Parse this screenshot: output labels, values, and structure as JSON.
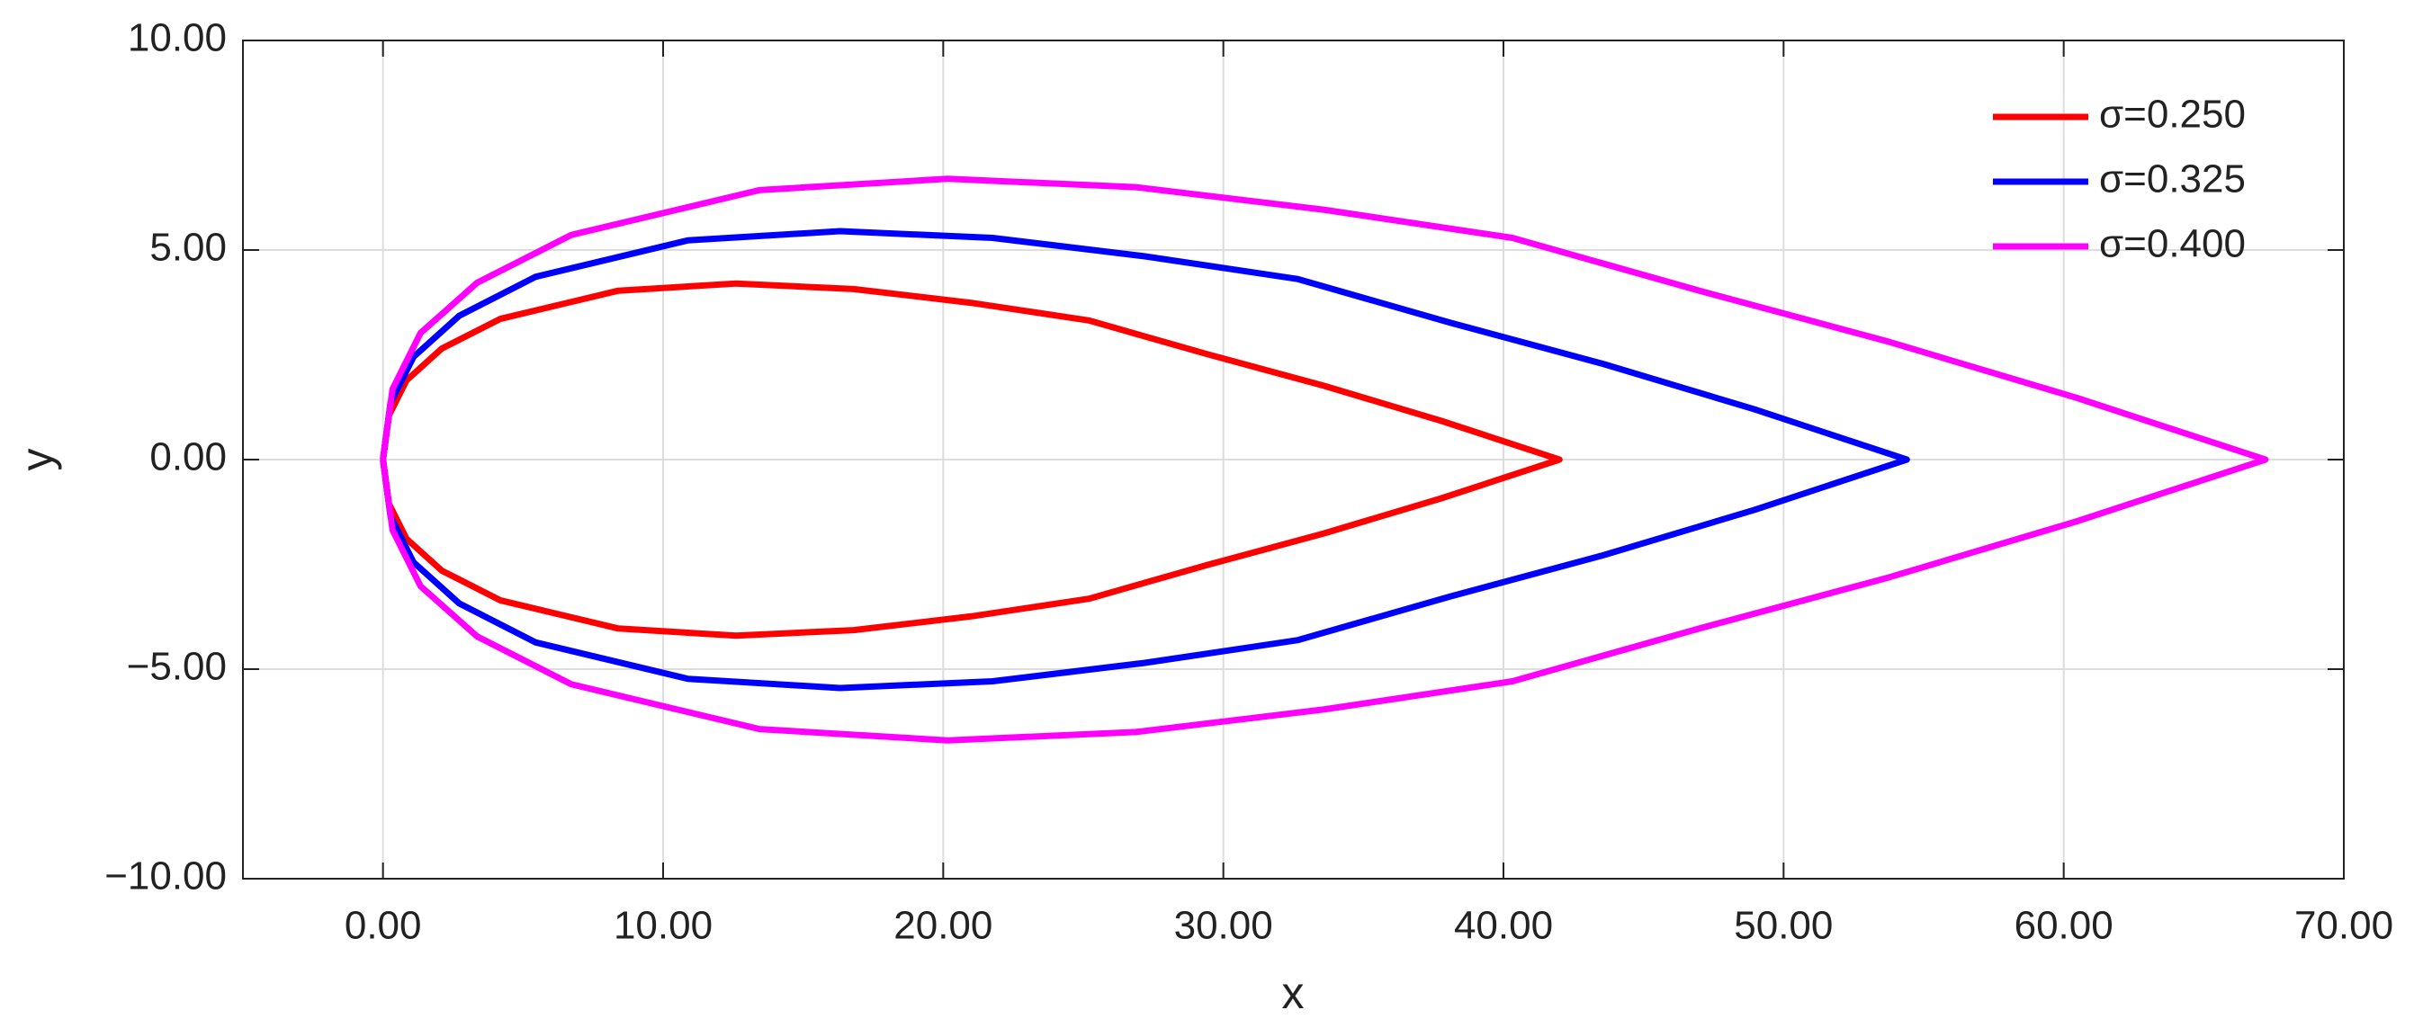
{
  "chart_data": {
    "type": "line",
    "xlabel": "x",
    "ylabel": "y",
    "xlim": [
      -5,
      70
    ],
    "ylim": [
      -10,
      10
    ],
    "xticks": [
      {
        "value": 0,
        "label": "0.00"
      },
      {
        "value": 10,
        "label": "10.00"
      },
      {
        "value": 20,
        "label": "20.00"
      },
      {
        "value": 30,
        "label": "30.00"
      },
      {
        "value": 40,
        "label": "40.00"
      },
      {
        "value": 50,
        "label": "50.00"
      },
      {
        "value": 60,
        "label": "60.00"
      },
      {
        "value": 70,
        "label": "70.00"
      }
    ],
    "yticks": [
      {
        "value": -10,
        "label": "−10.00"
      },
      {
        "value": -5,
        "label": "−5.00"
      },
      {
        "value": 0,
        "label": "0.00"
      },
      {
        "value": 5,
        "label": "5.00"
      },
      {
        "value": 10,
        "label": "10.00"
      }
    ],
    "grid": true,
    "legend": "upper right",
    "series": [
      {
        "name": "σ=0.250",
        "color": "#ff0000",
        "x": [
          0,
          0.21,
          0.84,
          2.1,
          4.2,
          8.4,
          12.6,
          16.8,
          21,
          25.2,
          29.4,
          33.6,
          37.8,
          42,
          37.8,
          33.6,
          29.4,
          25.2,
          21,
          16.8,
          12.6,
          8.4,
          4.2,
          2.1,
          0.84,
          0.21,
          0
        ],
        "values": [
          0,
          1.05,
          1.89,
          2.65,
          3.36,
          4.03,
          4.2,
          4.07,
          3.74,
          3.32,
          2.52,
          1.76,
          0.92,
          0,
          -0.92,
          -1.76,
          -2.52,
          -3.32,
          -3.74,
          -4.07,
          -4.2,
          -4.03,
          -3.36,
          -2.65,
          -1.89,
          -1.05,
          0
        ]
      },
      {
        "name": "σ=0.325",
        "color": "#0000ff",
        "x": [
          0,
          0.27,
          1.09,
          2.72,
          5.44,
          10.88,
          16.32,
          21.76,
          27.2,
          32.64,
          38.08,
          43.52,
          48.96,
          54.4,
          48.96,
          43.52,
          38.08,
          32.64,
          27.2,
          21.76,
          16.32,
          10.88,
          5.44,
          2.72,
          1.09,
          0.27,
          0
        ],
        "values": [
          0,
          1.36,
          2.45,
          3.43,
          4.36,
          5.23,
          5.45,
          5.29,
          4.85,
          4.31,
          3.27,
          2.29,
          1.2,
          0,
          -1.2,
          -2.29,
          -3.27,
          -4.31,
          -4.85,
          -5.29,
          -5.45,
          -5.23,
          -4.36,
          -3.43,
          -2.45,
          -1.36,
          0
        ]
      },
      {
        "name": "σ=0.400",
        "color": "#ff00ff",
        "x": [
          0,
          0.34,
          1.34,
          3.36,
          6.72,
          13.44,
          20.16,
          26.88,
          33.6,
          40.32,
          47.04,
          53.76,
          60.48,
          67.2,
          60.48,
          53.76,
          47.04,
          40.32,
          33.6,
          26.88,
          20.16,
          13.44,
          6.72,
          3.36,
          1.34,
          0.34,
          0
        ],
        "values": [
          0,
          1.68,
          3.02,
          4.22,
          5.36,
          6.43,
          6.7,
          6.5,
          5.96,
          5.29,
          4.02,
          2.81,
          1.47,
          0,
          -1.47,
          -2.81,
          -4.02,
          -5.29,
          -5.96,
          -6.5,
          -6.7,
          -6.43,
          -5.36,
          -4.22,
          -3.02,
          -1.68,
          0
        ]
      }
    ]
  }
}
